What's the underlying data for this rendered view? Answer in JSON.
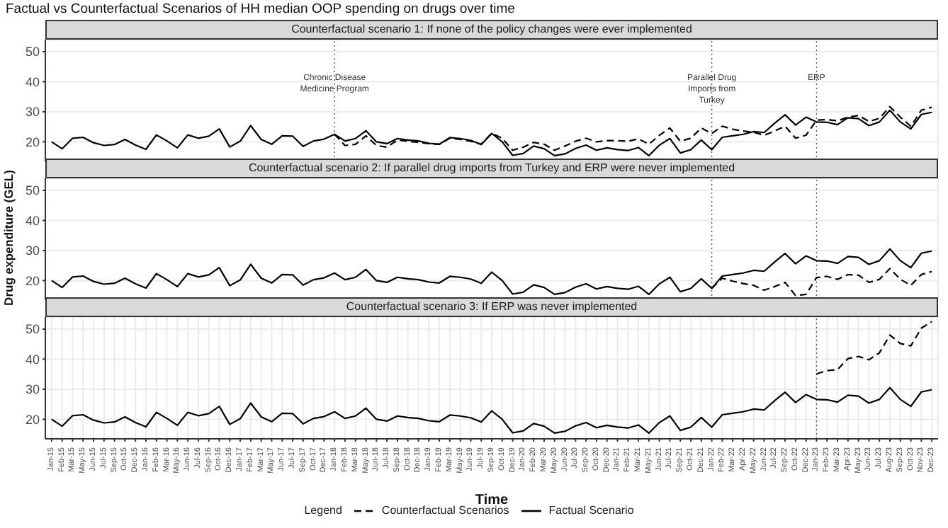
{
  "chart_data": [
    {
      "type": "line",
      "title": "Factual vs Counterfactual Scenarios of HH median OOP spending on drugs over time",
      "subtitle": "Counterfactual scenario 1: If none of the policy changes were ever implemented",
      "categories": [
        "Jan-15",
        "Feb-15",
        "Mar-15",
        "May-15",
        "Jun-15",
        "Jul-15",
        "Sep-15",
        "Oct-15",
        "Dec-15",
        "Jan-16",
        "Feb-16",
        "Mar-16",
        "May-16",
        "Jun-16",
        "Jul-16",
        "Sep-16",
        "Oct-16",
        "Dec-16",
        "Jan-17",
        "Feb-17",
        "Mar-17",
        "May-17",
        "Jun-17",
        "Jul-17",
        "Sep-17",
        "Oct-17",
        "Dec-17",
        "Jan-18",
        "Feb-18",
        "Mar-18",
        "May-18",
        "Jun-18",
        "Jul-18",
        "Sep-18",
        "Oct-18",
        "Dec-18",
        "Jan-19",
        "Feb-19",
        "Mar-19",
        "May-19",
        "Jun-19",
        "Jul-19",
        "Sep-19",
        "Oct-19",
        "Dec-19",
        "Jan-20",
        "Feb-20",
        "Mar-20",
        "May-20",
        "Jun-20",
        "Jul-20",
        "Sep-20",
        "Oct-20",
        "Dec-20",
        "Jan-21",
        "Feb-21",
        "Mar-21",
        "May-21",
        "Jun-21",
        "Jul-21",
        "Sep-21",
        "Oct-21",
        "Dec-21",
        "Jan-22",
        "Feb-22",
        "Mar-22",
        "Apr-22",
        "May-22",
        "Jun-22",
        "Jul-22",
        "Sep-22",
        "Oct-22",
        "Dec-22",
        "Jan-23",
        "Feb-23",
        "Mar-23",
        "Apr-23",
        "May-23",
        "Jun-23",
        "Jul-23",
        "Aug-23",
        "Sep-23",
        "Oct-23",
        "Nov-23",
        "Dec-23"
      ],
      "series": [
        {
          "color": "#000000",
          "line_style": "dashed",
          "values": [
            null,
            null,
            null,
            null,
            null,
            null,
            null,
            null,
            null,
            null,
            null,
            null,
            null,
            null,
            null,
            null,
            null,
            null,
            null,
            null,
            null,
            null,
            null,
            null,
            null,
            null,
            null,
            22.5,
            18.8,
            19.2,
            22.0,
            18.8,
            18.2,
            20.6,
            20.2,
            19.8,
            19.4,
            19.2,
            21.2,
            20.8,
            20.2,
            19.2,
            22.8,
            21.2,
            17.2,
            18.2,
            19.8,
            19.2,
            17.2,
            18.6,
            20.2,
            21.2,
            20.0,
            20.4,
            20.4,
            20.2,
            21.0,
            19.2,
            22.2,
            24.6,
            20.2,
            21.2,
            24.6,
            22.8,
            25.2,
            24.2,
            23.6,
            23.2,
            22.2,
            23.6,
            25.2,
            21.2,
            22.2,
            27.2,
            27.4,
            27.0,
            28.2,
            28.8,
            26.8,
            27.8,
            31.7,
            28.2,
            25.2,
            30.5,
            31.5
          ]
        },
        {
          "color": "#000000",
          "line_style": "solid",
          "values": [
            20.0,
            17.7,
            21.2,
            21.5,
            19.7,
            18.8,
            19.1,
            20.8,
            18.9,
            17.5,
            22.3,
            20.3,
            18.0,
            22.3,
            21.2,
            21.9,
            24.3,
            18.3,
            20.2,
            25.4,
            20.8,
            19.2,
            22.0,
            21.9,
            18.5,
            20.3,
            20.9,
            22.5,
            20.3,
            21.1,
            23.7,
            20.0,
            19.4,
            21.1,
            20.6,
            20.3,
            19.5,
            19.2,
            21.4,
            21.1,
            20.5,
            19.1,
            22.8,
            20.0,
            15.5,
            16.1,
            18.6,
            17.7,
            15.4,
            16.0,
            17.8,
            18.9,
            17.2,
            18.0,
            17.4,
            17.1,
            18.1,
            15.4,
            18.9,
            21.1,
            16.3,
            17.4,
            20.6,
            17.4,
            21.5,
            22.0,
            22.5,
            23.4,
            23.1,
            26.2,
            29.0,
            25.6,
            28.2,
            26.6,
            26.5,
            25.7,
            28.0,
            27.7,
            25.4,
            26.6,
            30.5,
            26.6,
            24.3,
            29.1,
            29.8
          ]
        }
      ],
      "ylim": [
        13.5,
        54
      ],
      "yticks": [
        20,
        30,
        40,
        50
      ],
      "grid": true,
      "tick_labels": "y",
      "ref_lines": [
        {
          "axis": "x",
          "value": "Jan-18",
          "label": "Chronic Disease Medicine Program",
          "color": "#555555",
          "line_style": "dotted"
        },
        {
          "axis": "x",
          "value": "Jan-22",
          "label": "Parallel Drug Imports from Turkey",
          "color": "#555555",
          "line_style": "dotted"
        },
        {
          "axis": "x",
          "value": "Jan-23",
          "label": "ERP",
          "color": "#555555",
          "line_style": "dotted"
        }
      ]
    },
    {
      "type": "line",
      "subtitle": "Counterfactual scenario 2: If parallel drug imports from Turkey and ERP were never implemented",
      "ylabel": "Drug expenditure (GEL)",
      "categories": [
        "Jan-15",
        "Feb-15",
        "Mar-15",
        "May-15",
        "Jun-15",
        "Jul-15",
        "Sep-15",
        "Oct-15",
        "Dec-15",
        "Jan-16",
        "Feb-16",
        "Mar-16",
        "May-16",
        "Jun-16",
        "Jul-16",
        "Sep-16",
        "Oct-16",
        "Dec-16",
        "Jan-17",
        "Feb-17",
        "Mar-17",
        "May-17",
        "Jun-17",
        "Jul-17",
        "Sep-17",
        "Oct-17",
        "Dec-17",
        "Jan-18",
        "Feb-18",
        "Mar-18",
        "May-18",
        "Jun-18",
        "Jul-18",
        "Sep-18",
        "Oct-18",
        "Dec-18",
        "Jan-19",
        "Feb-19",
        "Mar-19",
        "May-19",
        "Jun-19",
        "Jul-19",
        "Sep-19",
        "Oct-19",
        "Dec-19",
        "Jan-20",
        "Feb-20",
        "Mar-20",
        "May-20",
        "Jun-20",
        "Jul-20",
        "Sep-20",
        "Oct-20",
        "Dec-20",
        "Jan-21",
        "Feb-21",
        "Mar-21",
        "May-21",
        "Jun-21",
        "Jul-21",
        "Sep-21",
        "Oct-21",
        "Dec-21",
        "Jan-22",
        "Feb-22",
        "Mar-22",
        "Apr-22",
        "May-22",
        "Jun-22",
        "Jul-22",
        "Sep-22",
        "Oct-22",
        "Dec-22",
        "Jan-23",
        "Feb-23",
        "Mar-23",
        "Apr-23",
        "May-23",
        "Jun-23",
        "Jul-23",
        "Aug-23",
        "Sep-23",
        "Oct-23",
        "Nov-23",
        "Dec-23"
      ],
      "series": [
        {
          "color": "#000000",
          "line_style": "dashed",
          "values": [
            null,
            null,
            null,
            null,
            null,
            null,
            null,
            null,
            null,
            null,
            null,
            null,
            null,
            null,
            null,
            null,
            null,
            null,
            null,
            null,
            null,
            null,
            null,
            null,
            null,
            null,
            null,
            null,
            null,
            null,
            null,
            null,
            null,
            null,
            null,
            null,
            null,
            null,
            null,
            null,
            null,
            null,
            null,
            null,
            null,
            null,
            null,
            null,
            null,
            null,
            null,
            null,
            null,
            null,
            null,
            null,
            null,
            null,
            null,
            null,
            null,
            null,
            null,
            17.4,
            20.8,
            19.8,
            19.0,
            18.4,
            16.8,
            18.0,
            19.4,
            15.0,
            15.4,
            21.0,
            21.4,
            20.4,
            22.0,
            21.8,
            19.4,
            20.4,
            24.0,
            20.4,
            18.4,
            22.0,
            23.0
          ]
        },
        {
          "color": "#000000",
          "line_style": "solid",
          "values": [
            20.0,
            17.7,
            21.2,
            21.5,
            19.7,
            18.8,
            19.1,
            20.8,
            18.9,
            17.5,
            22.3,
            20.3,
            18.0,
            22.3,
            21.2,
            21.9,
            24.3,
            18.3,
            20.2,
            25.4,
            20.8,
            19.2,
            22.0,
            21.9,
            18.5,
            20.3,
            20.9,
            22.5,
            20.3,
            21.1,
            23.7,
            20.0,
            19.4,
            21.1,
            20.6,
            20.3,
            19.5,
            19.2,
            21.4,
            21.1,
            20.5,
            19.1,
            22.8,
            20.0,
            15.5,
            16.1,
            18.6,
            17.7,
            15.4,
            16.0,
            17.8,
            18.9,
            17.2,
            18.0,
            17.4,
            17.1,
            18.1,
            15.4,
            18.9,
            21.1,
            16.3,
            17.4,
            20.6,
            17.4,
            21.5,
            22.0,
            22.5,
            23.4,
            23.1,
            26.2,
            29.0,
            25.6,
            28.2,
            26.6,
            26.5,
            25.7,
            28.0,
            27.7,
            25.4,
            26.6,
            30.5,
            26.6,
            24.3,
            29.1,
            29.8
          ]
        }
      ],
      "ylim": [
        13.5,
        54
      ],
      "yticks": [
        20,
        30,
        40,
        50
      ],
      "grid": true,
      "tick_labels": "y",
      "ref_lines": [
        {
          "axis": "x",
          "value": "Jan-22",
          "color": "#555555",
          "line_style": "dotted"
        },
        {
          "axis": "x",
          "value": "Jan-23",
          "color": "#555555",
          "line_style": "dotted"
        }
      ]
    },
    {
      "type": "line",
      "subtitle": "Counterfactual scenario 3: If ERP was never implemented",
      "xlabel": "Time",
      "legend_title": "Legend",
      "legend": "bottom",
      "categories": [
        "Jan-15",
        "Feb-15",
        "Mar-15",
        "May-15",
        "Jun-15",
        "Jul-15",
        "Sep-15",
        "Oct-15",
        "Dec-15",
        "Jan-16",
        "Feb-16",
        "Mar-16",
        "May-16",
        "Jun-16",
        "Jul-16",
        "Sep-16",
        "Oct-16",
        "Dec-16",
        "Jan-17",
        "Feb-17",
        "Mar-17",
        "May-17",
        "Jun-17",
        "Jul-17",
        "Sep-17",
        "Oct-17",
        "Dec-17",
        "Jan-18",
        "Feb-18",
        "Mar-18",
        "May-18",
        "Jun-18",
        "Jul-18",
        "Sep-18",
        "Oct-18",
        "Dec-18",
        "Jan-19",
        "Feb-19",
        "Mar-19",
        "May-19",
        "Jun-19",
        "Jul-19",
        "Sep-19",
        "Oct-19",
        "Dec-19",
        "Jan-20",
        "Feb-20",
        "Mar-20",
        "May-20",
        "Jun-20",
        "Jul-20",
        "Sep-20",
        "Oct-20",
        "Dec-20",
        "Jan-21",
        "Feb-21",
        "Mar-21",
        "May-21",
        "Jun-21",
        "Jul-21",
        "Sep-21",
        "Oct-21",
        "Dec-21",
        "Jan-22",
        "Feb-22",
        "Mar-22",
        "Apr-22",
        "May-22",
        "Jun-22",
        "Jul-22",
        "Sep-22",
        "Oct-22",
        "Dec-22",
        "Jan-23",
        "Feb-23",
        "Mar-23",
        "Apr-23",
        "May-23",
        "Jun-23",
        "Jul-23",
        "Aug-23",
        "Sep-23",
        "Oct-23",
        "Nov-23",
        "Dec-23"
      ],
      "series": [
        {
          "name": "Counterfactual Scenarios",
          "color": "#000000",
          "line_style": "dashed",
          "values": [
            null,
            null,
            null,
            null,
            null,
            null,
            null,
            null,
            null,
            null,
            null,
            null,
            null,
            null,
            null,
            null,
            null,
            null,
            null,
            null,
            null,
            null,
            null,
            null,
            null,
            null,
            null,
            null,
            null,
            null,
            null,
            null,
            null,
            null,
            null,
            null,
            null,
            null,
            null,
            null,
            null,
            null,
            null,
            null,
            null,
            null,
            null,
            null,
            null,
            null,
            null,
            null,
            null,
            null,
            null,
            null,
            null,
            null,
            null,
            null,
            null,
            null,
            null,
            null,
            null,
            null,
            null,
            null,
            null,
            null,
            null,
            null,
            null,
            35.1,
            36.2,
            36.5,
            40.2,
            40.9,
            39.8,
            42.1,
            48.0,
            45.2,
            44.4,
            50.3,
            52.5
          ]
        },
        {
          "name": "Factual Scenario",
          "color": "#000000",
          "line_style": "solid",
          "values": [
            20.0,
            17.7,
            21.2,
            21.5,
            19.7,
            18.8,
            19.1,
            20.8,
            18.9,
            17.5,
            22.3,
            20.3,
            18.0,
            22.3,
            21.2,
            21.9,
            24.3,
            18.3,
            20.2,
            25.4,
            20.8,
            19.2,
            22.0,
            21.9,
            18.5,
            20.3,
            20.9,
            22.5,
            20.3,
            21.1,
            23.7,
            20.0,
            19.4,
            21.1,
            20.6,
            20.3,
            19.5,
            19.2,
            21.4,
            21.1,
            20.5,
            19.1,
            22.8,
            20.0,
            15.5,
            16.1,
            18.6,
            17.7,
            15.4,
            16.0,
            17.8,
            18.9,
            17.2,
            18.0,
            17.4,
            17.1,
            18.1,
            15.4,
            18.9,
            21.1,
            16.3,
            17.4,
            20.6,
            17.4,
            21.5,
            22.0,
            22.5,
            23.4,
            23.1,
            26.2,
            29.0,
            25.6,
            28.2,
            26.6,
            26.5,
            25.7,
            28.0,
            27.7,
            25.4,
            26.6,
            30.5,
            26.6,
            24.3,
            29.1,
            29.8
          ]
        }
      ],
      "ylim": [
        13.5,
        54
      ],
      "yticks": [
        20,
        30,
        40,
        50
      ],
      "grid": true,
      "ref_lines": [
        {
          "axis": "x",
          "value": "Jan-23",
          "color": "#555555",
          "line_style": "dotted"
        }
      ]
    }
  ]
}
